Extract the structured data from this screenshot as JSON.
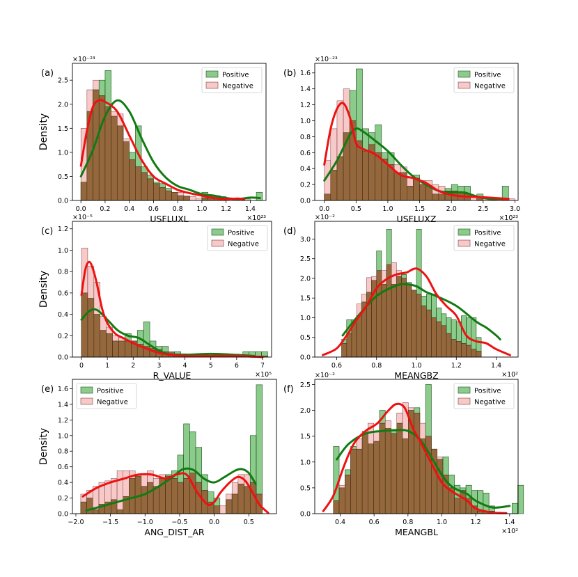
{
  "legend": {
    "positive": "Positive",
    "negative": "Negative"
  },
  "colors": {
    "positive_bar": "#2ca02c",
    "negative_bar": "#f4a5a5",
    "positive_line": "#127a12",
    "negative_line": "#ee1111",
    "overlap": "#8b5a2b"
  },
  "chart_data": [
    {
      "panel": "(a)",
      "type": "histogram+kde",
      "xlabel": "USFLUXL",
      "ylabel": "Density",
      "x_exponent": "×10²³",
      "y_exponent": "×10⁻²³",
      "xlim": [
        -0.07,
        1.53
      ],
      "ylim": [
        0,
        2.85
      ],
      "xticks": [
        0.0,
        0.2,
        0.4,
        0.6,
        0.8,
        1.0,
        1.2,
        1.4
      ],
      "xtick_labels": [
        "0.0",
        "0.2",
        "0.4",
        "0.6",
        "0.8",
        "1.0",
        "1.2",
        "1.4"
      ],
      "yticks": [
        0.0,
        0.5,
        1.0,
        1.5,
        2.0,
        2.5
      ],
      "ytick_labels": [
        "0.0",
        "0.5",
        "1.0",
        "1.5",
        "2.0",
        "2.5"
      ],
      "legend_position": "top-right",
      "bin_width": 0.05,
      "positive": {
        "bin_start": 0.0,
        "heights": [
          0.38,
          1.85,
          2.3,
          2.5,
          2.7,
          1.75,
          1.55,
          1.22,
          1.0,
          1.55,
          0.7,
          0.53,
          0.38,
          0.35,
          0.25,
          0.17,
          0.1,
          0.08,
          0.0,
          0.0,
          0.17,
          0.08,
          0.1,
          0.08,
          0.0,
          0.0,
          0.0,
          0.0,
          0.0,
          0.17
        ]
      },
      "negative": {
        "bin_start": 0.0,
        "heights": [
          1.5,
          2.3,
          2.5,
          2.18,
          1.95,
          1.85,
          1.8,
          1.28,
          0.85,
          0.7,
          0.58,
          0.45,
          0.35,
          0.27,
          0.2,
          0.17,
          0.17,
          0.1,
          0.08,
          0.05,
          0.05,
          0.05,
          0.05,
          0.05,
          0.04,
          0.04,
          0.04,
          0.03
        ]
      },
      "kde_positive": {
        "x": [
          0.0,
          0.1,
          0.2,
          0.3,
          0.4,
          0.5,
          0.6,
          0.7,
          0.8,
          0.9,
          1.0,
          1.1,
          1.2,
          1.3,
          1.4,
          1.48
        ],
        "y": [
          0.5,
          1.05,
          1.75,
          2.08,
          1.85,
          1.3,
          0.8,
          0.48,
          0.3,
          0.22,
          0.13,
          0.1,
          0.05,
          0.03,
          0.06,
          0.05
        ]
      },
      "kde_negative": {
        "x": [
          0.0,
          0.05,
          0.1,
          0.15,
          0.2,
          0.3,
          0.4,
          0.5,
          0.6,
          0.7,
          0.8,
          0.9,
          1.0,
          1.1,
          1.2,
          1.3,
          1.35
        ],
        "y": [
          0.72,
          1.45,
          1.95,
          2.08,
          2.05,
          1.85,
          1.35,
          0.85,
          0.5,
          0.35,
          0.22,
          0.15,
          0.1,
          0.05,
          0.03,
          0.04,
          0.02
        ]
      }
    },
    {
      "panel": "(b)",
      "type": "histogram+kde",
      "xlabel": "USFLUXZ",
      "ylabel": "",
      "x_exponent": "×10²³",
      "y_exponent": "×10⁻²³",
      "xlim": [
        -0.15,
        3.05
      ],
      "ylim": [
        0,
        1.72
      ],
      "xticks": [
        0.0,
        0.5,
        1.0,
        1.5,
        2.0,
        2.5,
        3.0
      ],
      "xtick_labels": [
        "0.0",
        "0.5",
        "1.0",
        "1.5",
        "2.0",
        "2.5",
        "3.0"
      ],
      "yticks": [
        0.0,
        0.2,
        0.4,
        0.6,
        0.8,
        1.0,
        1.2,
        1.4,
        1.6
      ],
      "ytick_labels": [
        "0.0",
        "0.2",
        "0.4",
        "0.6",
        "0.8",
        "1.0",
        "1.2",
        "1.4",
        "1.6"
      ],
      "legend_position": "top-right",
      "bin_width": 0.1,
      "positive": {
        "bin_start": 0.0,
        "heights": [
          0.08,
          0.38,
          0.55,
          0.85,
          1.38,
          1.65,
          0.9,
          0.85,
          0.95,
          0.6,
          0.6,
          0.35,
          0.35,
          0.18,
          0.32,
          0.2,
          0.18,
          0.08,
          0.08,
          0.15,
          0.2,
          0.18,
          0.18,
          0.0,
          0.08,
          0.0,
          0.0,
          0.0,
          0.18
        ]
      },
      "negative": {
        "bin_start": 0.0,
        "heights": [
          0.5,
          0.9,
          1.25,
          1.4,
          1.0,
          0.75,
          0.62,
          0.7,
          0.6,
          0.52,
          0.45,
          0.45,
          0.42,
          0.28,
          0.28,
          0.25,
          0.25,
          0.2,
          0.18,
          0.12,
          0.12,
          0.1,
          0.08,
          0.05,
          0.05,
          0.03,
          0.03,
          0.02,
          0.02,
          0.02
        ]
      },
      "kde_positive": {
        "x": [
          0.0,
          0.2,
          0.4,
          0.5,
          0.6,
          0.8,
          1.0,
          1.2,
          1.4,
          1.6,
          1.8,
          2.0,
          2.2,
          2.4,
          2.6,
          2.8
        ],
        "y": [
          0.25,
          0.5,
          0.82,
          0.9,
          0.87,
          0.75,
          0.62,
          0.45,
          0.3,
          0.2,
          0.12,
          0.1,
          0.1,
          0.05,
          0.02,
          0.02
        ]
      },
      "kde_negative": {
        "x": [
          0.0,
          0.1,
          0.2,
          0.3,
          0.4,
          0.5,
          0.6,
          0.8,
          1.0,
          1.2,
          1.4,
          1.6,
          1.8,
          2.0,
          2.2,
          2.5,
          2.9
        ],
        "y": [
          0.45,
          0.9,
          1.15,
          1.22,
          1.05,
          0.72,
          0.65,
          0.58,
          0.45,
          0.32,
          0.28,
          0.22,
          0.12,
          0.07,
          0.05,
          0.04,
          0.02
        ]
      }
    },
    {
      "panel": "(c)",
      "type": "histogram+kde",
      "xlabel": "R_VALUE",
      "ylabel": "Density",
      "x_exponent": "×10⁵",
      "y_exponent": "×10⁻⁵",
      "xlim": [
        -0.35,
        7.35
      ],
      "ylim": [
        0,
        1.27
      ],
      "xticks": [
        0,
        1,
        2,
        3,
        4,
        5,
        6,
        7
      ],
      "xtick_labels": [
        "0",
        "1",
        "2",
        "3",
        "4",
        "5",
        "6",
        "7"
      ],
      "yticks": [
        0.0,
        0.2,
        0.4,
        0.6,
        0.8,
        1.0,
        1.2
      ],
      "ytick_labels": [
        "0.0",
        "0.2",
        "0.4",
        "0.6",
        "0.8",
        "1.0",
        "1.2"
      ],
      "legend_position": "top-right",
      "bin_width": 0.24,
      "positive": {
        "bin_start": 0.0,
        "heights": [
          0.6,
          0.55,
          0.4,
          0.25,
          0.22,
          0.15,
          0.15,
          0.22,
          0.15,
          0.25,
          0.33,
          0.15,
          0.1,
          0.1,
          0.05,
          0.05,
          0.03,
          0.02,
          0.0,
          0.0,
          0.0,
          0.0,
          0.0,
          0.0,
          0.0,
          0.0,
          0.05,
          0.05,
          0.05,
          0.05
        ]
      },
      "negative": {
        "bin_start": 0.0,
        "heights": [
          1.02,
          0.85,
          0.7,
          0.38,
          0.28,
          0.2,
          0.18,
          0.15,
          0.15,
          0.12,
          0.1,
          0.08,
          0.07,
          0.05,
          0.04,
          0.03,
          0.02,
          0.02,
          0.01,
          0.01,
          0.01,
          0.01,
          0.01,
          0.01,
          0.01,
          0.01,
          0.01,
          0.01,
          0.01,
          0.01
        ]
      },
      "kde_positive": {
        "x": [
          0.0,
          0.3,
          0.6,
          1.0,
          1.4,
          1.8,
          2.2,
          2.6,
          3.0,
          3.5,
          4.0,
          5.0,
          6.0,
          6.7
        ],
        "y": [
          0.35,
          0.43,
          0.44,
          0.35,
          0.25,
          0.2,
          0.18,
          0.12,
          0.06,
          0.02,
          0.02,
          0.03,
          0.02,
          0.01
        ]
      },
      "kde_negative": {
        "x": [
          0.0,
          0.15,
          0.3,
          0.45,
          0.6,
          0.8,
          1.0,
          1.3,
          1.6,
          2.0,
          2.5,
          3.0,
          3.5,
          4.0,
          5.0,
          6.0,
          7.0
        ],
        "y": [
          0.58,
          0.82,
          0.89,
          0.82,
          0.68,
          0.45,
          0.32,
          0.22,
          0.18,
          0.13,
          0.08,
          0.04,
          0.02,
          0.01,
          0.01,
          0.01,
          0.0
        ]
      }
    },
    {
      "panel": "(d)",
      "type": "histogram+kde",
      "xlabel": "MEANGBZ",
      "ylabel": "",
      "x_exponent": "×10²",
      "y_exponent": "×10⁻²",
      "xlim": [
        0.49,
        1.51
      ],
      "ylim": [
        0,
        3.45
      ],
      "xticks": [
        0.6,
        0.8,
        1.0,
        1.2,
        1.4
      ],
      "xtick_labels": [
        "0.6",
        "0.8",
        "1.0",
        "1.2",
        "1.4"
      ],
      "yticks": [
        0.0,
        0.5,
        1.0,
        1.5,
        2.0,
        2.5,
        3.0
      ],
      "ytick_labels": [
        "0.0",
        "0.5",
        "1.0",
        "1.5",
        "2.0",
        "2.5",
        "3.0"
      ],
      "legend_position": "top-right",
      "bin_width": 0.025,
      "positive": {
        "bin_start": 0.625,
        "heights": [
          0.45,
          0.95,
          0.95,
          1.05,
          1.4,
          1.65,
          1.95,
          2.7,
          1.85,
          3.25,
          1.85,
          2.05,
          2.1,
          1.9,
          1.7,
          3.25,
          1.55,
          1.6,
          1.6,
          1.25,
          1.1,
          1.0,
          0.95,
          0.9,
          1.05,
          1.0,
          1.0,
          0.5
        ]
      },
      "negative": {
        "bin_start": 0.625,
        "heights": [
          0.35,
          0.6,
          0.85,
          1.35,
          1.6,
          2.02,
          2.05,
          2.2,
          2.2,
          2.35,
          2.4,
          2.2,
          2.0,
          1.85,
          1.7,
          1.6,
          1.3,
          1.2,
          1.0,
          0.9,
          0.8,
          0.6,
          0.45,
          0.4,
          0.35,
          0.3,
          0.2,
          0.15
        ]
      },
      "kde_positive": {
        "x": [
          0.63,
          0.7,
          0.8,
          0.9,
          0.95,
          1.0,
          1.05,
          1.1,
          1.2,
          1.3,
          1.35,
          1.4,
          1.42
        ],
        "y": [
          0.55,
          1.0,
          1.55,
          1.82,
          1.85,
          1.8,
          1.65,
          1.55,
          1.3,
          0.9,
          0.75,
          0.55,
          0.45
        ]
      },
      "kde_negative": {
        "x": [
          0.53,
          0.6,
          0.65,
          0.7,
          0.75,
          0.8,
          0.85,
          0.9,
          0.95,
          1.0,
          1.05,
          1.1,
          1.15,
          1.2,
          1.25,
          1.3,
          1.35,
          1.4,
          1.47
        ],
        "y": [
          0.05,
          0.22,
          0.55,
          0.95,
          1.3,
          1.75,
          1.98,
          2.1,
          2.15,
          2.25,
          2.05,
          1.6,
          1.3,
          1.05,
          0.55,
          0.4,
          0.35,
          0.2,
          0.05
        ]
      }
    },
    {
      "panel": "(e)",
      "type": "histogram+kde",
      "xlabel": "ANG_DIST_AR",
      "ylabel": "Density",
      "x_exponent": "",
      "y_exponent": "",
      "xlim": [
        -2.05,
        0.9
      ],
      "ylim": [
        0,
        1.72
      ],
      "xticks": [
        -2.0,
        -1.5,
        -1.0,
        -0.5,
        0.0,
        0.5
      ],
      "xtick_labels": [
        "−2.0",
        "−1.5",
        "−1.0",
        "−0.5",
        "0.0",
        "0.5"
      ],
      "yticks": [
        0.0,
        0.2,
        0.4,
        0.6,
        0.8,
        1.0,
        1.2,
        1.4,
        1.6
      ],
      "ytick_labels": [
        "0.0",
        "0.2",
        "0.4",
        "0.6",
        "0.8",
        "1.0",
        "1.2",
        "1.4",
        "1.6"
      ],
      "legend_position": "top-left",
      "bin_width": 0.0875,
      "positive": {
        "bin_start": -1.93,
        "heights": [
          0.15,
          0.2,
          0.05,
          0.12,
          0.15,
          0.18,
          0.05,
          0.22,
          0.45,
          0.48,
          0.35,
          0.4,
          0.35,
          0.45,
          0.5,
          0.55,
          0.75,
          1.15,
          1.05,
          0.85,
          0.5,
          0.28,
          0.2,
          0.0,
          0.18,
          0.25,
          0.38,
          0.35,
          1.0,
          1.65
        ]
      },
      "negative": {
        "bin_start": -1.93,
        "heights": [
          0.25,
          0.3,
          0.35,
          0.4,
          0.42,
          0.45,
          0.55,
          0.55,
          0.55,
          0.5,
          0.5,
          0.55,
          0.45,
          0.5,
          0.48,
          0.45,
          0.4,
          0.45,
          0.52,
          0.4,
          0.3,
          0.15,
          0.1,
          0.1,
          0.25,
          0.4,
          0.5,
          0.5,
          0.4,
          0.25
        ]
      },
      "kde_positive": {
        "x": [
          -1.85,
          -1.6,
          -1.4,
          -1.2,
          -1.0,
          -0.8,
          -0.6,
          -0.45,
          -0.3,
          -0.15,
          0.0,
          0.15,
          0.3,
          0.4,
          0.5,
          0.6
        ],
        "y": [
          0.04,
          0.1,
          0.15,
          0.2,
          0.25,
          0.35,
          0.47,
          0.57,
          0.56,
          0.45,
          0.4,
          0.47,
          0.55,
          0.57,
          0.52,
          0.38
        ]
      },
      "kde_negative": {
        "x": [
          -1.9,
          -1.7,
          -1.5,
          -1.3,
          -1.1,
          -0.9,
          -0.7,
          -0.55,
          -0.4,
          -0.25,
          -0.1,
          0.0,
          0.1,
          0.25,
          0.35,
          0.45,
          0.55,
          0.65,
          0.78
        ],
        "y": [
          0.22,
          0.33,
          0.4,
          0.45,
          0.5,
          0.5,
          0.45,
          0.5,
          0.5,
          0.28,
          0.12,
          0.15,
          0.28,
          0.42,
          0.47,
          0.42,
          0.28,
          0.12,
          0.01
        ]
      }
    },
    {
      "panel": "(f)",
      "type": "histogram+kde",
      "xlabel": "MEANGBL",
      "ylabel": "",
      "x_exponent": "×10²",
      "y_exponent": "×10⁻²",
      "xlim": [
        0.25,
        1.45
      ],
      "ylim": [
        0,
        2.6
      ],
      "xticks": [
        0.4,
        0.6,
        0.8,
        1.0,
        1.2,
        1.4
      ],
      "xtick_labels": [
        "0.4",
        "0.6",
        "0.8",
        "1.0",
        "1.2",
        "1.4"
      ],
      "yticks": [
        0.0,
        0.5,
        1.0,
        1.5,
        2.0,
        2.5
      ],
      "ytick_labels": [
        "0.0",
        "0.5",
        "1.0",
        "1.5",
        "2.0",
        "2.5"
      ],
      "legend_position": "top-right",
      "bin_width": 0.034,
      "positive": {
        "bin_start": 0.36,
        "heights": [
          1.3,
          0.5,
          0.85,
          1.3,
          1.25,
          1.55,
          1.35,
          1.4,
          2.0,
          1.65,
          1.6,
          1.75,
          1.45,
          2.0,
          2.05,
          1.45,
          2.5,
          1.25,
          1.05,
          1.1,
          0.75,
          0.55,
          0.5,
          0.55,
          0.45,
          0.45,
          0.4,
          0.15,
          0.0,
          0.0,
          0.0,
          0.2,
          0.55
        ]
      },
      "negative": {
        "bin_start": 0.36,
        "heights": [
          0.25,
          0.55,
          0.75,
          1.25,
          1.45,
          1.6,
          1.75,
          1.6,
          1.75,
          1.8,
          1.55,
          1.95,
          2.15,
          2.05,
          1.95,
          1.75,
          1.5,
          1.25,
          1.1,
          0.75,
          0.5,
          0.3,
          0.45,
          0.3,
          0.15,
          0.05,
          0.05,
          0.05,
          0.03,
          0.02
        ]
      },
      "kde_positive": {
        "x": [
          0.38,
          0.45,
          0.55,
          0.65,
          0.75,
          0.8,
          0.85,
          0.9,
          1.0,
          1.05,
          1.1,
          1.15,
          1.2,
          1.3,
          1.4
        ],
        "y": [
          1.05,
          1.35,
          1.55,
          1.6,
          1.62,
          1.6,
          1.5,
          1.3,
          0.75,
          0.55,
          0.45,
          0.38,
          0.25,
          0.12,
          0.15
        ]
      },
      "kde_negative": {
        "x": [
          0.3,
          0.36,
          0.42,
          0.48,
          0.55,
          0.62,
          0.68,
          0.73,
          0.78,
          0.83,
          0.88,
          0.95,
          1.0,
          1.05,
          1.1,
          1.15,
          1.2,
          1.3,
          1.38
        ],
        "y": [
          0.05,
          0.35,
          0.9,
          1.35,
          1.6,
          1.75,
          1.98,
          2.12,
          2.05,
          1.65,
          1.35,
          0.9,
          0.6,
          0.45,
          0.35,
          0.25,
          0.1,
          0.02,
          0.01
        ]
      }
    }
  ]
}
